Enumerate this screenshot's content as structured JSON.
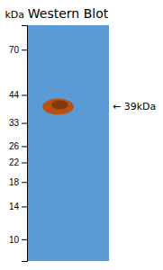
{
  "chart_data": {
    "type": "band",
    "title": "Western Blot",
    "ylabel": "kDa",
    "values": [
      39
    ],
    "color": "#b85010",
    "annotation": "← 39kDa",
    "log": "y",
    "ylim": [
      8,
      90
    ],
    "yticks": [
      70,
      44,
      33,
      26,
      22,
      18,
      14,
      10
    ]
  }
}
